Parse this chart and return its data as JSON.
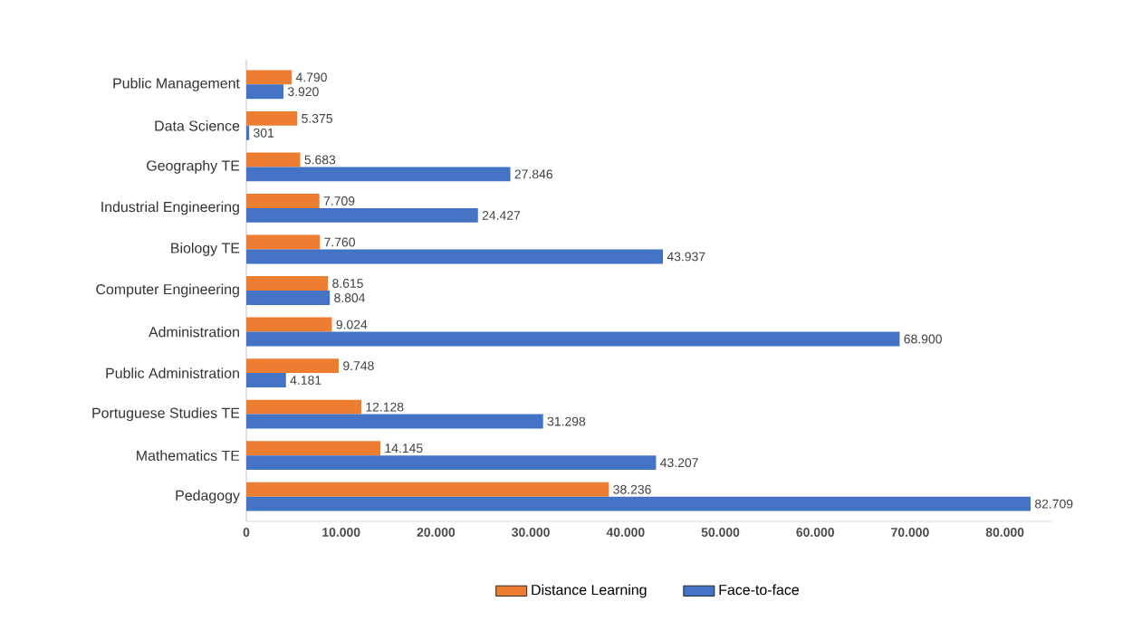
{
  "chart_data": {
    "type": "bar",
    "orientation": "horizontal",
    "categories": [
      "Public Management",
      "Data Science",
      "Geography TE",
      "Industrial Engineering",
      "Biology TE",
      "Computer Engineering",
      "Administration",
      "Public Administration",
      "Portuguese Studies TE",
      "Mathematics TE",
      "Pedagogy"
    ],
    "series": [
      {
        "name": "Distance Learning",
        "color": "#ed7d31",
        "values": [
          4790,
          5375,
          5683,
          7709,
          7760,
          8615,
          9024,
          9748,
          12128,
          14145,
          38236
        ],
        "value_labels": [
          "4.790",
          "5.375",
          "5.683",
          "7.709",
          "7.760",
          "8.615",
          "9.024",
          "9.748",
          "12.128",
          "14.145",
          "38.236"
        ]
      },
      {
        "name": "Face-to-face",
        "color": "#4472c4",
        "values": [
          3920,
          301,
          27846,
          24427,
          43937,
          8804,
          68900,
          4181,
          31298,
          43207,
          82709
        ],
        "value_labels": [
          "3.920",
          "301",
          "27.846",
          "24.427",
          "43.937",
          "8.804",
          "68.900",
          "4.181",
          "31.298",
          "43.207",
          "82.709"
        ]
      }
    ],
    "xlim": [
      0,
      85000
    ],
    "xticks": [
      0,
      {
        "value": 10000,
        "label": "10.000"
      },
      {
        "value": 20000,
        "label": "20.000"
      },
      {
        "value": 30000,
        "label": "30.000"
      },
      {
        "value": 40000,
        "label": "40.000"
      },
      {
        "value": 50000,
        "label": "50.000"
      },
      {
        "value": 60000,
        "label": "60.000"
      },
      {
        "value": 70000,
        "label": "70.000"
      },
      {
        "value": 80000,
        "label": "80.000"
      }
    ],
    "legend": "bottom"
  }
}
